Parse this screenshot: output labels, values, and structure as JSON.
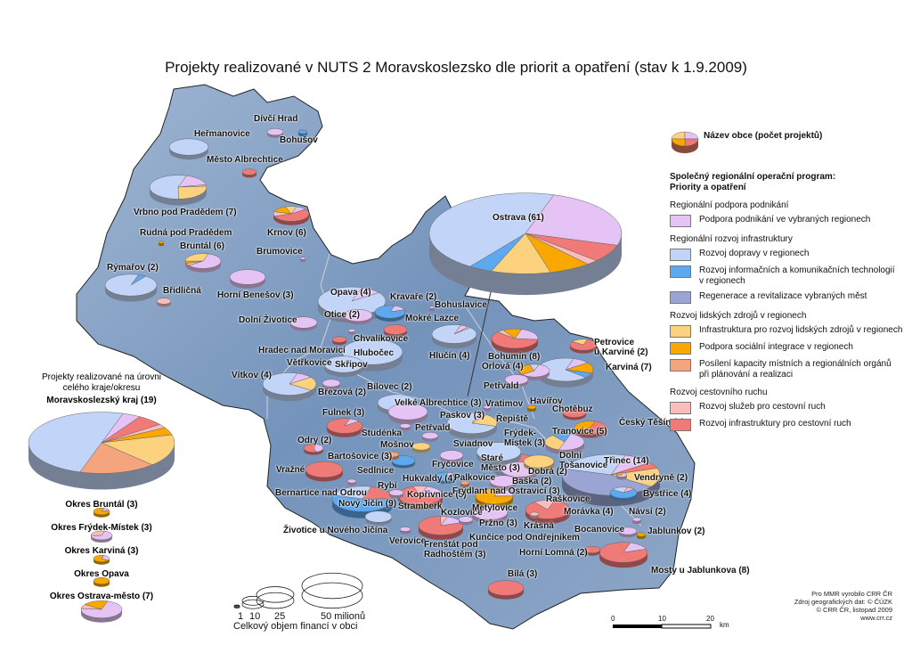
{
  "title": "Projekty  realizované v NUTS 2 Moravskoslezsko dle priorit a opatření  (stav k 1.9.2009)",
  "categories": {
    "pp": {
      "label": "Podpora podnikání ve vybraných regionech",
      "color": "#e6c3f5"
    },
    "dop": {
      "label": "Rozvoj dopravy v regionech",
      "color": "#c2d4f7"
    },
    "ict": {
      "label": "Rozvoj informačních a komunikačních technologií\nv regionech",
      "color": "#5ea8ef"
    },
    "reg": {
      "label": "Regenerace a revitalizace vybraných měst",
      "color": "#9aa5d4"
    },
    "infr": {
      "label": "Infrastruktura pro rozvoj lidských zdrojů v regionech",
      "color": "#fdd27e"
    },
    "soc": {
      "label": "Podpora sociální integrace v regionech",
      "color": "#f8a800"
    },
    "pos": {
      "label": "Posílení kapacity místních a regionálních orgánů\npři plánování a realizaci",
      "color": "#f4a57e"
    },
    "sl": {
      "label": "Rozvoj služeb pro cestovní ruch",
      "color": "#fbbcbc"
    },
    "icr": {
      "label": "Rozvoj infrastruktury pro cestovní ruch",
      "color": "#f07a78"
    }
  },
  "legend": {
    "symbol_label": "Název obce (počet projektů)",
    "program": "Společný regionální operační program:\nPriority a opatření",
    "groups": [
      {
        "label": "Regionální podpora podnikání",
        "items": [
          "pp"
        ]
      },
      {
        "label": "Regionální rozvoj infrastruktury",
        "items": [
          "dop",
          "ict",
          "reg"
        ]
      },
      {
        "label": "Rozvoj lidských zdrojů v regionech",
        "items": [
          "infr",
          "soc",
          "pos"
        ]
      },
      {
        "label": "Rozvoj cestovního ruchu",
        "items": [
          "sl",
          "icr"
        ]
      }
    ]
  },
  "cities": [
    {
      "label": "Dívčí Hrad",
      "shares": {
        "pp": 1
      }
    },
    {
      "label": "Bohušov",
      "shares": {
        "ict": 1
      }
    },
    {
      "label": "Heřmanovice",
      "shares": {
        "dop": 1
      }
    },
    {
      "label": "Město Albrechtice",
      "shares": {
        "icr": 1
      }
    },
    {
      "label": "Vrbno pod Pradědem (7)",
      "shares": {
        "dop": 0.55,
        "pp": 0.17,
        "sl": 0.02,
        "infr": 0.26
      }
    },
    {
      "label": "Rudná pod Pradědem",
      "shares": {
        "soc": 1
      }
    },
    {
      "label": "Bruntál (6)",
      "shares": {
        "pp": 0.6,
        "sl": 0.05,
        "soc": 0.05,
        "infr": 0.3
      }
    },
    {
      "label": "Krnov (6)",
      "shares": {
        "icr": 0.55,
        "sl": 0.1,
        "soc": 0.15,
        "infr": 0.1,
        "pp": 0.1
      }
    },
    {
      "label": "Brumovice",
      "shares": {
        "pp": 1
      }
    },
    {
      "label": "Rýmařov (2)",
      "shares": {
        "dop": 0.95,
        "ict": 0.05
      }
    },
    {
      "label": "Břidličná",
      "shares": {
        "sl": 1
      }
    },
    {
      "label": "Horní Benešov (3)",
      "shares": {
        "pp": 1
      }
    },
    {
      "label": "Opava (4)",
      "shares": {
        "dop": 0.9,
        "pp": 0.1
      }
    },
    {
      "label": "Otice (2)",
      "shares": {
        "pp": 1
      }
    },
    {
      "label": "Kravaře (2)",
      "shares": {
        "ict": 0.85,
        "pp": 0.15
      }
    },
    {
      "label": "Bohuslavice",
      "shares": {
        "pp": 1
      }
    },
    {
      "label": "Mokré Lazce",
      "shares": {
        "icr": 1
      }
    },
    {
      "label": "Dolní Životice",
      "shares": {
        "pp": 1
      }
    },
    {
      "label": "Chvalíkovice",
      "shares": {
        "pp": 1
      }
    },
    {
      "label": "Hradec nad Moravicí",
      "shares": {
        "icr": 1
      }
    },
    {
      "label": "Hlučín (4)",
      "shares": {
        "dop": 0.92,
        "pp": 0.06,
        "infr": 0.02
      }
    },
    {
      "label": "Hlubočec",
      "shares": {
        "dop": 1
      }
    },
    {
      "label": "Skřipov",
      "shares": {
        "dop": 1
      }
    },
    {
      "label": "Větřkovice",
      "shares": {
        "dop": 1
      }
    },
    {
      "label": "Vítkov (4)",
      "shares": {
        "dop": 0.7,
        "pp": 0.1,
        "infr": 0.2
      }
    },
    {
      "label": "Březová (2)",
      "shares": {
        "pp": 1
      }
    },
    {
      "label": "Bílovec (2)",
      "shares": {
        "dop": 1
      }
    },
    {
      "label": "Velké Albrechtice (3)",
      "shares": {
        "pp": 1
      }
    },
    {
      "label": "Fulnek (3)",
      "shares": {
        "icr": 0.9,
        "pp": 0.1
      }
    },
    {
      "label": "Studénka",
      "shares": {
        "pp": 1
      }
    },
    {
      "label": "Petřvald",
      "shares": {
        "pp": 1
      }
    },
    {
      "label": "Odry (2)",
      "shares": {
        "icr": 0.6,
        "pp": 0.4
      }
    },
    {
      "label": "Mošnov",
      "shares": {
        "infr": 1
      }
    },
    {
      "label": "Bartošovice (3)",
      "shares": {
        "pos": 1
      }
    },
    {
      "label": "Sedlnice",
      "shares": {
        "ict": 1
      }
    },
    {
      "label": "Vražné",
      "shares": {
        "icr": 1
      }
    },
    {
      "label": "Bernartice nad Odrou",
      "shares": {
        "pp": 1
      }
    },
    {
      "label": "Rybí",
      "shares": {
        "pp": 1
      }
    },
    {
      "label": "Nový Jičín (9)",
      "shares": {
        "ict": 0.55,
        "dop": 0.25,
        "icr": 0.2
      }
    },
    {
      "label": "Kopřivnice (5)",
      "shares": {
        "icr": 0.65,
        "sl": 0.1,
        "pp": 0.25
      }
    },
    {
      "label": "Štramberk",
      "shares": {}
    },
    {
      "label": "Životice u Nového Jičína",
      "shares": {
        "dop": 1
      }
    },
    {
      "label": "Veřovice",
      "shares": {
        "pp": 1
      }
    },
    {
      "label": "Frenštát pod\nRadhoštěm (3)",
      "shares": {
        "icr": 0.8,
        "sl": 0.05,
        "pp": 0.15
      }
    },
    {
      "label": "Kozlovice",
      "shares": {
        "pp": 1
      }
    },
    {
      "label": "Hukvaldy (4)",
      "shares": {
        "ict": 0.8,
        "sl": 0.1,
        "pp": 0.1
      }
    },
    {
      "label": "Palkovice",
      "shares": {
        "pos": 1
      }
    },
    {
      "label": "Frýdlant nad Ostravicí (3)",
      "shares": {
        "soc": 0.8,
        "pp": 0.2
      }
    },
    {
      "label": "Metylovice",
      "shares": {
        "pp": 1
      }
    },
    {
      "label": "Fryčovice",
      "shares": {
        "pp": 1
      }
    },
    {
      "label": "Paskov (3)",
      "shares": {
        "dop": 0.75,
        "pp": 0.05,
        "infr": 0.2
      }
    },
    {
      "label": "Vratimov",
      "shares": {
        "pp": 1
      }
    },
    {
      "label": "Sviadnov",
      "shares": {
        "dop": 1
      }
    },
    {
      "label": "Řepiště",
      "shares": {}
    },
    {
      "label": "Frýdek-\nMístek (3)",
      "shares": {
        "dop": 0.8,
        "icr": 0.2
      }
    },
    {
      "label": "Staré\nMěsto (3)",
      "shares": {
        "pp": 1
      }
    },
    {
      "label": "Baška (2)",
      "shares": {
        "pp": 1
      }
    },
    {
      "label": "Dobrá (2)",
      "shares": {
        "infr": 1
      }
    },
    {
      "label": "Pržno (3)",
      "shares": {
        "pp": 1
      }
    },
    {
      "label": "Kunčice pod Ondřejníkem",
      "shares": {}
    },
    {
      "label": "Krásná",
      "shares": {
        "sl": 1
      }
    },
    {
      "label": "Raškovice",
      "shares": {
        "icr": 0.85,
        "sl": 0.15
      }
    },
    {
      "label": "Morávka (4)",
      "shares": {}
    },
    {
      "label": "Bocanovice",
      "shares": {
        "pp": 1
      }
    },
    {
      "label": "Horní Lomná (2)",
      "shares": {
        "icr": 1
      }
    },
    {
      "label": "Bílá (3)",
      "shares": {
        "icr": 1
      }
    },
    {
      "label": "Ostrava (61)",
      "shares": {
        "pp": 0.25,
        "icr": 0.07,
        "sl": 0.02,
        "soc": 0.07,
        "infr": 0.1,
        "ict": 0.04,
        "dop": 0.45
      }
    },
    {
      "label": "Bohumín (8)",
      "shares": {
        "pp": 0.22,
        "icr": 0.6,
        "sl": 0.05,
        "soc": 0.13
      }
    },
    {
      "label": "Orlová (4)",
      "shares": {
        "pp": 0.6,
        "soc": 0.3,
        "dop": 0.1
      }
    },
    {
      "label": "Petřvald",
      "shares": {
        "pp": 1
      }
    },
    {
      "label": "Petrovice\nu Karviné (2)",
      "shares": {
        "infr": 0.2,
        "icr": 0.8
      }
    },
    {
      "label": "Karviná (7)",
      "shares": {
        "pp": 0.1,
        "soc": 0.15,
        "ict": 0.07,
        "dop": 0.68
      }
    },
    {
      "label": "Havířov",
      "shares": {
        "soc": 1
      }
    },
    {
      "label": "Chotěbuz",
      "shares": {
        "icr": 1
      }
    },
    {
      "label": "Český Těšín (3)",
      "shares": {
        "soc": 0.4,
        "icr": 0.6
      }
    },
    {
      "label": "Tranovice (5)",
      "shares": {
        "pp": 0.5,
        "infr": 0.35,
        "ict": 0.15
      }
    },
    {
      "label": "Dolní\nTošanovice",
      "shares": {}
    },
    {
      "label": "Třinec (14)",
      "shares": {
        "dop": 0.25,
        "pp": 0.1,
        "icr": 0.05,
        "infr": 0.15,
        "reg": 0.45
      }
    },
    {
      "label": "Vendryně (2)",
      "shares": {
        "pp": 0.7,
        "soc": 0.3
      }
    },
    {
      "label": "Bystřice (4)",
      "shares": {
        "sl": 0.1,
        "dop": 0.2,
        "ict": 0.7
      }
    },
    {
      "label": "Návsí (2)",
      "shares": {
        "pp": 1
      }
    },
    {
      "label": "Jablunkov (2)",
      "shares": {
        "soc": 1
      }
    },
    {
      "label": "Mosty u Jablunkova (8)",
      "shares": {
        "pp": 0.15,
        "icr": 0.85
      }
    }
  ],
  "districts": {
    "title": "Projekty realizované na úrovni\ncelého kraje/okresu",
    "items": [
      {
        "label": "Moravskoslezský  kraj (19)",
        "shares": {
          "pp": 0.04,
          "icr": 0.06,
          "sl": 0.02,
          "pos": 0.17,
          "soc": 0.04,
          "infr": 0.17,
          "dop": 0.5
        }
      },
      {
        "label": "Okres Bruntál (3)",
        "shares": {
          "soc": 0.85,
          "pp": 0.15
        }
      },
      {
        "label": "Okres Frýdek-Místek (3)",
        "shares": {
          "sl": 0.3,
          "pp": 0.7
        }
      },
      {
        "label": "Okres Karviná (3)",
        "shares": {
          "pp": 0.3,
          "soc": 0.7
        }
      },
      {
        "label": "Okres Opava",
        "shares": {
          "soc": 1
        }
      },
      {
        "label": "Okres Ostrava-město (7)",
        "shares": {
          "sl": 0.08,
          "soc": 0.2,
          "pp": 0.72
        }
      }
    ]
  },
  "size_legend": {
    "values": [
      "1",
      "10",
      "25",
      "50 milionů"
    ],
    "caption": "Celkový objem financí v obci"
  },
  "scale_bar": {
    "ticks": [
      "0",
      "10",
      "20"
    ],
    "unit": "km"
  },
  "credits": [
    "Pro MMR vyrobilo CRR ČR",
    "Zdroj geografických dat: © ČÚZK",
    "© CRR ČR, listopad 2009",
    "www.crr.cz"
  ]
}
